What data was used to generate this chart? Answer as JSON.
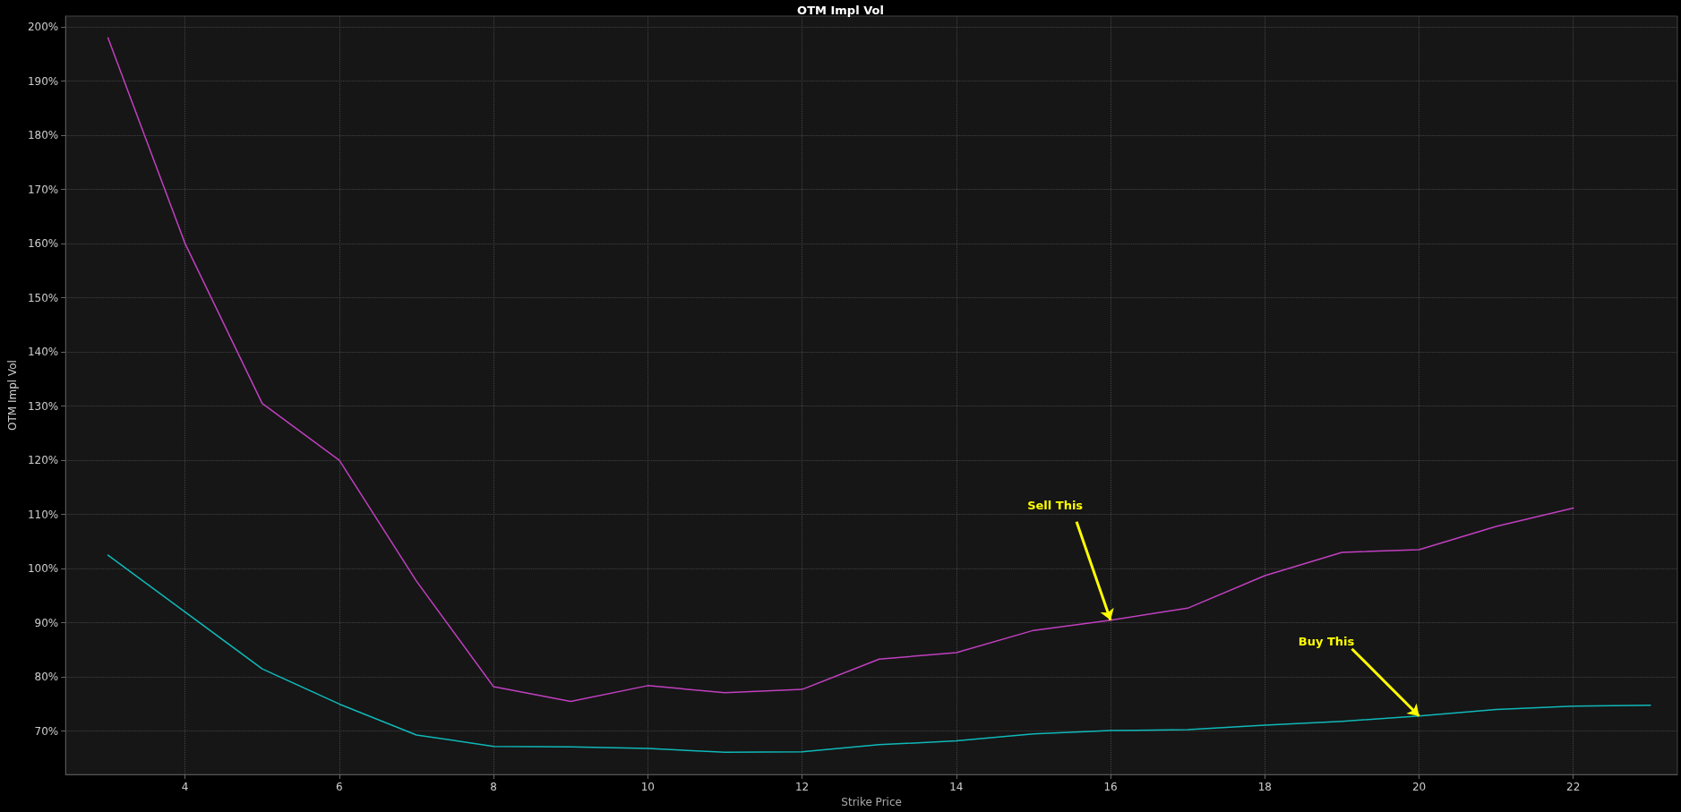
{
  "chart_data": {
    "type": "line",
    "title": "OTM Impl Vol",
    "xlabel": "Strike Price",
    "ylabel": "OTM Impl Vol",
    "x": [
      3,
      4,
      5,
      6,
      7,
      8,
      9,
      10,
      11,
      12,
      13,
      14,
      15,
      16,
      17,
      18,
      19,
      20,
      21,
      22,
      23
    ],
    "series": [
      {
        "color": "#c040c0",
        "values": [
          198,
          160,
          130.5,
          120,
          97.7,
          78.2,
          75.5,
          78.4,
          77.1,
          77.7,
          83.3,
          84.5,
          88.6,
          90.5,
          92.7,
          98.7,
          103,
          103.5,
          107.8,
          111.2,
          null
        ]
      },
      {
        "color": "#10b8b8",
        "values": [
          102.5,
          92,
          81.5,
          75,
          69.3,
          67.2,
          67.1,
          66.8,
          66.1,
          66.2,
          67.5,
          68.2,
          69.5,
          70.1,
          70.3,
          71.1,
          71.8,
          72.8,
          74,
          74.6,
          74.8
        ]
      }
    ],
    "xlim": [
      2.45,
      23.35
    ],
    "xticks": [
      4,
      6,
      8,
      10,
      12,
      14,
      16,
      18,
      20,
      22
    ],
    "ylim": [
      62,
      202
    ],
    "yticks": [
      {
        "value": 70,
        "label": "70%"
      },
      {
        "value": 80,
        "label": "80%"
      },
      {
        "value": 90,
        "label": "90%"
      },
      {
        "value": 100,
        "label": "100%"
      },
      {
        "value": 110,
        "label": "110%"
      },
      {
        "value": 120,
        "label": "120%"
      },
      {
        "value": 130,
        "label": "130%"
      },
      {
        "value": 140,
        "label": "140%"
      },
      {
        "value": 150,
        "label": "150%"
      },
      {
        "value": 160,
        "label": "160%"
      },
      {
        "value": 170,
        "label": "170%"
      },
      {
        "value": 180,
        "label": "180%"
      },
      {
        "value": 190,
        "label": "190%"
      },
      {
        "value": 200,
        "label": "200%"
      }
    ],
    "annotations": [
      {
        "text": "Sell This",
        "x": 16,
        "y": 90.5
      },
      {
        "text": "Buy This",
        "x": 20,
        "y": 72.8
      }
    ],
    "grid": true,
    "marker": "none",
    "line_style": "solid"
  }
}
